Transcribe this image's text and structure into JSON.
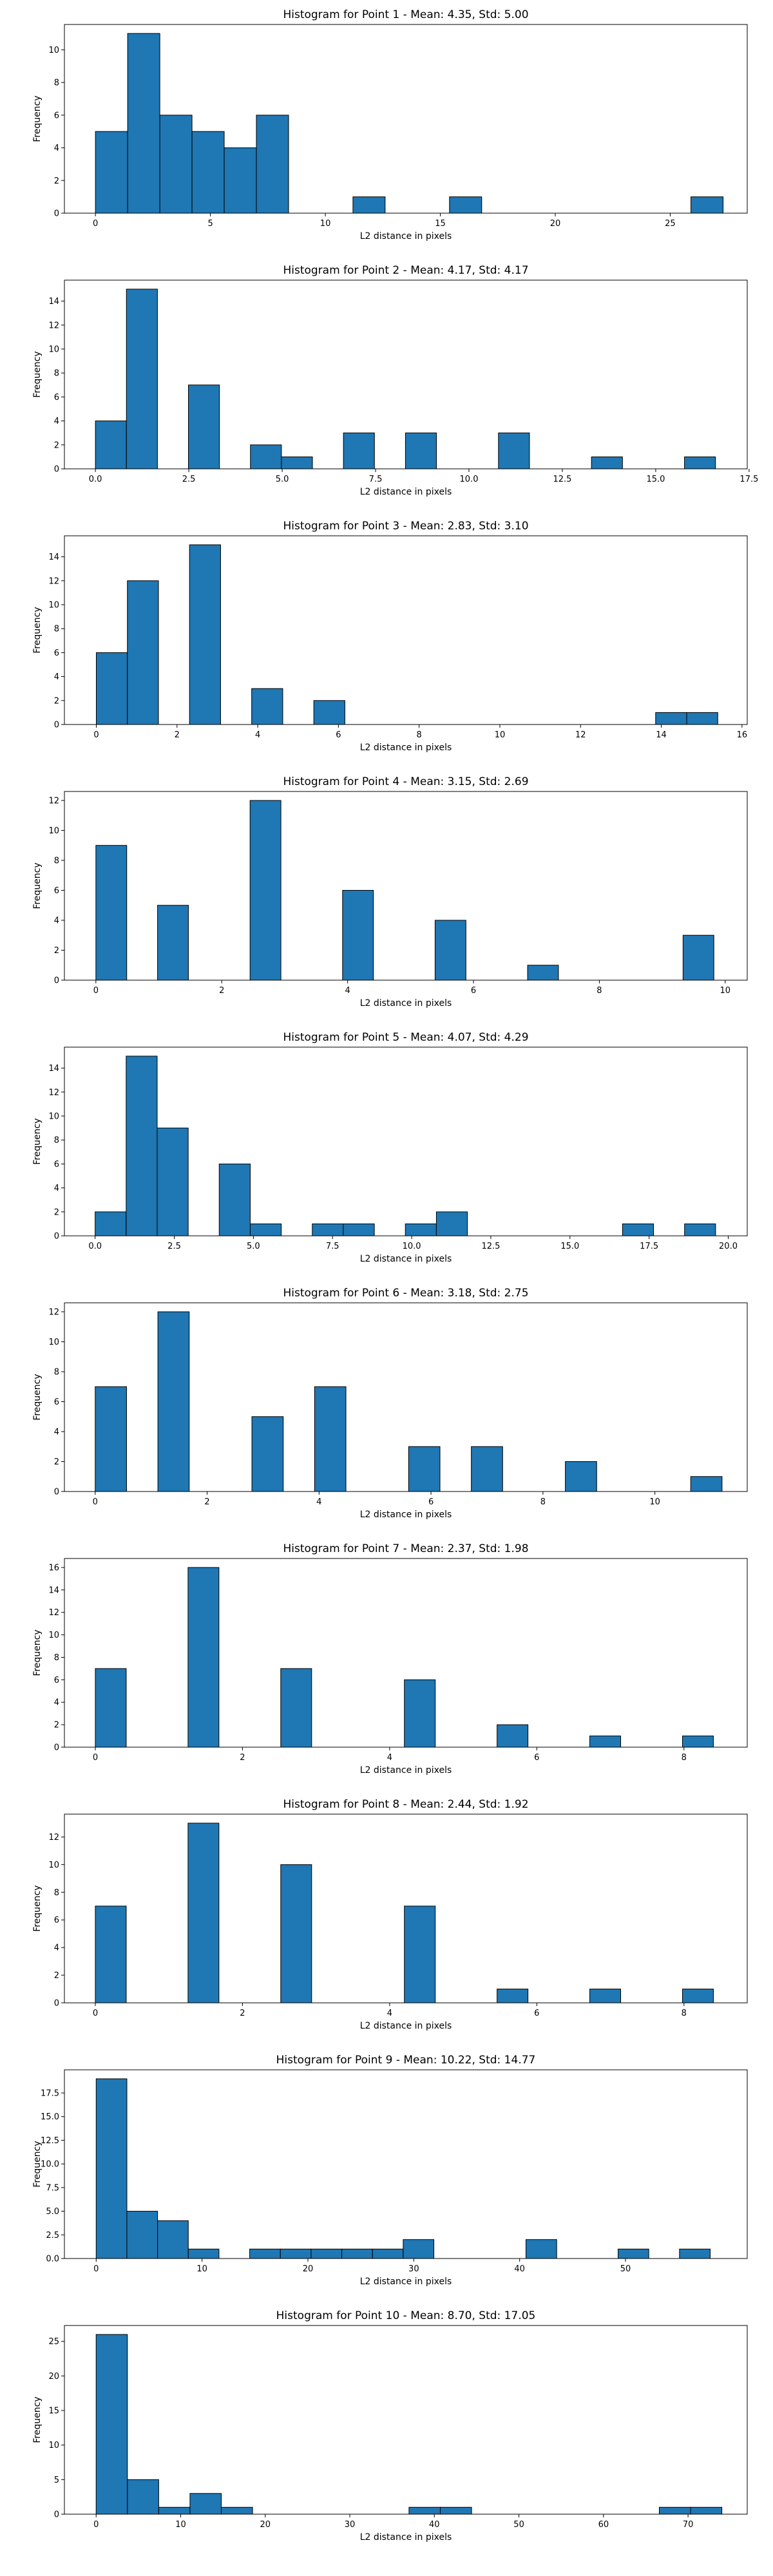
{
  "style": {
    "bar_color": "#1f77b4",
    "edge_color": "#000000"
  },
  "chart_data": [
    {
      "type": "bar",
      "title": "Histogram for Point 1 - Mean: 4.35, Std: 5.00",
      "xlabel": "L2 distance in pixels",
      "ylabel": "Frequency",
      "xlim": [
        -1.35,
        28.35
      ],
      "ylim": [
        0,
        11.55
      ],
      "xticks": [
        0,
        5,
        10,
        15,
        20,
        25
      ],
      "xtick_labels": [
        "0",
        "5",
        "10",
        "15",
        "20",
        "25"
      ],
      "yticks": [
        0,
        2,
        4,
        6,
        8,
        10
      ],
      "ytick_labels": [
        "0",
        "2",
        "4",
        "6",
        "8",
        "10"
      ],
      "bins": [
        {
          "x0": 0.0,
          "x1": 1.4,
          "count": 5
        },
        {
          "x0": 1.4,
          "x1": 2.8,
          "count": 11
        },
        {
          "x0": 2.8,
          "x1": 4.2,
          "count": 6
        },
        {
          "x0": 4.2,
          "x1": 5.6,
          "count": 5
        },
        {
          "x0": 5.6,
          "x1": 7.0,
          "count": 4
        },
        {
          "x0": 7.0,
          "x1": 8.4,
          "count": 6
        },
        {
          "x0": 11.2,
          "x1": 12.6,
          "count": 1
        },
        {
          "x0": 15.4,
          "x1": 16.8,
          "count": 1
        },
        {
          "x0": 25.9,
          "x1": 27.3,
          "count": 1
        }
      ]
    },
    {
      "type": "bar",
      "title": "Histogram for Point 2 - Mean: 4.17, Std: 4.17",
      "xlabel": "L2 distance in pixels",
      "ylabel": "Frequency",
      "xlim": [
        -0.83,
        17.45
      ],
      "ylim": [
        0,
        15.75
      ],
      "xticks": [
        0,
        2.5,
        5,
        7.5,
        10,
        12.5,
        15,
        17.5
      ],
      "xtick_labels": [
        "0.0",
        "2.5",
        "5.0",
        "7.5",
        "10.0",
        "12.5",
        "15.0",
        "17.5"
      ],
      "yticks": [
        0,
        2,
        4,
        6,
        8,
        10,
        12,
        14
      ],
      "ytick_labels": [
        "0",
        "2",
        "4",
        "6",
        "8",
        "10",
        "12",
        "14"
      ],
      "bins": [
        {
          "x0": 0.0,
          "x1": 0.83,
          "count": 4
        },
        {
          "x0": 0.83,
          "x1": 1.66,
          "count": 15
        },
        {
          "x0": 2.49,
          "x1": 3.32,
          "count": 7
        },
        {
          "x0": 4.15,
          "x1": 4.98,
          "count": 2
        },
        {
          "x0": 4.98,
          "x1": 5.81,
          "count": 1
        },
        {
          "x0": 6.64,
          "x1": 7.47,
          "count": 3
        },
        {
          "x0": 8.3,
          "x1": 9.13,
          "count": 3
        },
        {
          "x0": 10.79,
          "x1": 11.62,
          "count": 3
        },
        {
          "x0": 13.28,
          "x1": 14.11,
          "count": 1
        },
        {
          "x0": 15.77,
          "x1": 16.6,
          "count": 1
        }
      ]
    },
    {
      "type": "bar",
      "title": "Histogram for Point 3 - Mean: 2.83, Std: 3.10",
      "xlabel": "L2 distance in pixels",
      "ylabel": "Frequency",
      "xlim": [
        -0.79,
        16.13
      ],
      "ylim": [
        0,
        15.75
      ],
      "xticks": [
        0,
        2,
        4,
        6,
        8,
        10,
        12,
        14,
        16
      ],
      "xtick_labels": [
        "0",
        "2",
        "4",
        "6",
        "8",
        "10",
        "12",
        "14",
        "16"
      ],
      "yticks": [
        0,
        2,
        4,
        6,
        8,
        10,
        12,
        14
      ],
      "ytick_labels": [
        "0",
        "2",
        "4",
        "6",
        "8",
        "10",
        "12",
        "14"
      ],
      "bins": [
        {
          "x0": 0.0,
          "x1": 0.77,
          "count": 6
        },
        {
          "x0": 0.77,
          "x1": 1.54,
          "count": 12
        },
        {
          "x0": 2.31,
          "x1": 3.08,
          "count": 15
        },
        {
          "x0": 3.85,
          "x1": 4.62,
          "count": 3
        },
        {
          "x0": 5.39,
          "x1": 6.16,
          "count": 2
        },
        {
          "x0": 13.86,
          "x1": 14.63,
          "count": 1
        },
        {
          "x0": 14.63,
          "x1": 15.4,
          "count": 1
        }
      ]
    },
    {
      "type": "bar",
      "title": "Histogram for Point 4 - Mean: 3.15, Std: 2.69",
      "xlabel": "L2 distance in pixels",
      "ylabel": "Frequency",
      "xlim": [
        -0.5,
        10.35
      ],
      "ylim": [
        0,
        12.6
      ],
      "xticks": [
        0,
        2,
        4,
        6,
        8,
        10
      ],
      "xtick_labels": [
        "0",
        "2",
        "4",
        "6",
        "8",
        "10"
      ],
      "yticks": [
        0,
        2,
        4,
        6,
        8,
        10,
        12
      ],
      "ytick_labels": [
        "0",
        "2",
        "4",
        "6",
        "8",
        "10",
        "12"
      ],
      "bins": [
        {
          "x0": 0.0,
          "x1": 0.49,
          "count": 9
        },
        {
          "x0": 0.98,
          "x1": 1.47,
          "count": 5
        },
        {
          "x0": 2.45,
          "x1": 2.94,
          "count": 12
        },
        {
          "x0": 3.92,
          "x1": 4.41,
          "count": 6
        },
        {
          "x0": 5.39,
          "x1": 5.88,
          "count": 4
        },
        {
          "x0": 6.86,
          "x1": 7.35,
          "count": 1
        },
        {
          "x0": 9.33,
          "x1": 9.82,
          "count": 3
        }
      ]
    },
    {
      "type": "bar",
      "title": "Histogram for Point 5 - Mean: 4.07, Std: 4.29",
      "xlabel": "L2 distance in pixels",
      "ylabel": "Frequency",
      "xlim": [
        -0.97,
        20.6
      ],
      "ylim": [
        0,
        15.75
      ],
      "xticks": [
        0,
        2.5,
        5,
        7.5,
        10,
        12.5,
        15,
        17.5,
        20
      ],
      "xtick_labels": [
        "0.0",
        "2.5",
        "5.0",
        "7.5",
        "10.0",
        "12.5",
        "15.0",
        "17.5",
        "20.0"
      ],
      "yticks": [
        0,
        2,
        4,
        6,
        8,
        10,
        12,
        14
      ],
      "ytick_labels": [
        "0",
        "2",
        "4",
        "6",
        "8",
        "10",
        "12",
        "14"
      ],
      "bins": [
        {
          "x0": 0.0,
          "x1": 0.98,
          "count": 2
        },
        {
          "x0": 0.98,
          "x1": 1.96,
          "count": 15
        },
        {
          "x0": 1.96,
          "x1": 2.94,
          "count": 9
        },
        {
          "x0": 3.92,
          "x1": 4.9,
          "count": 6
        },
        {
          "x0": 4.9,
          "x1": 5.88,
          "count": 1
        },
        {
          "x0": 6.86,
          "x1": 7.84,
          "count": 1
        },
        {
          "x0": 7.84,
          "x1": 8.82,
          "count": 1
        },
        {
          "x0": 9.8,
          "x1": 10.78,
          "count": 1
        },
        {
          "x0": 10.78,
          "x1": 11.76,
          "count": 2
        },
        {
          "x0": 16.66,
          "x1": 17.64,
          "count": 1
        },
        {
          "x0": 18.62,
          "x1": 19.6,
          "count": 1
        }
      ]
    },
    {
      "type": "bar",
      "title": "Histogram for Point 6 - Mean: 3.18, Std: 2.75",
      "xlabel": "L2 distance in pixels",
      "ylabel": "Frequency",
      "xlim": [
        -0.55,
        11.65
      ],
      "ylim": [
        0,
        12.6
      ],
      "xticks": [
        0,
        2,
        4,
        6,
        8,
        10
      ],
      "xtick_labels": [
        "0",
        "2",
        "4",
        "6",
        "8",
        "10"
      ],
      "yticks": [
        0,
        2,
        4,
        6,
        8,
        10,
        12
      ],
      "ytick_labels": [
        "0",
        "2",
        "4",
        "6",
        "8",
        "10",
        "12"
      ],
      "bins": [
        {
          "x0": 0.0,
          "x1": 0.56,
          "count": 7
        },
        {
          "x0": 1.12,
          "x1": 1.68,
          "count": 12
        },
        {
          "x0": 2.8,
          "x1": 3.36,
          "count": 5
        },
        {
          "x0": 3.92,
          "x1": 4.48,
          "count": 7
        },
        {
          "x0": 5.6,
          "x1": 6.16,
          "count": 3
        },
        {
          "x0": 6.72,
          "x1": 7.28,
          "count": 3
        },
        {
          "x0": 8.4,
          "x1": 8.96,
          "count": 2
        },
        {
          "x0": 10.64,
          "x1": 11.2,
          "count": 1
        }
      ]
    },
    {
      "type": "bar",
      "title": "Histogram for Point 7 - Mean: 2.37, Std: 1.98",
      "xlabel": "L2 distance in pixels",
      "ylabel": "Frequency",
      "xlim": [
        -0.42,
        8.86
      ],
      "ylim": [
        0,
        16.8
      ],
      "xticks": [
        0,
        2,
        4,
        6,
        8
      ],
      "xtick_labels": [
        "0",
        "2",
        "4",
        "6",
        "8"
      ],
      "yticks": [
        0,
        2,
        4,
        6,
        8,
        10,
        12,
        14,
        16
      ],
      "ytick_labels": [
        "0",
        "2",
        "4",
        "6",
        "8",
        "10",
        "12",
        "14",
        "16"
      ],
      "bins": [
        {
          "x0": 0.0,
          "x1": 0.42,
          "count": 7
        },
        {
          "x0": 1.26,
          "x1": 1.68,
          "count": 16
        },
        {
          "x0": 2.52,
          "x1": 2.94,
          "count": 7
        },
        {
          "x0": 4.2,
          "x1": 4.62,
          "count": 6
        },
        {
          "x0": 5.46,
          "x1": 5.88,
          "count": 2
        },
        {
          "x0": 6.72,
          "x1": 7.14,
          "count": 1
        },
        {
          "x0": 7.98,
          "x1": 8.4,
          "count": 1
        }
      ]
    },
    {
      "type": "bar",
      "title": "Histogram for Point 8 - Mean: 2.44, Std: 1.92",
      "xlabel": "L2 distance in pixels",
      "ylabel": "Frequency",
      "xlim": [
        -0.42,
        8.86
      ],
      "ylim": [
        0,
        13.65
      ],
      "xticks": [
        0,
        2,
        4,
        6,
        8
      ],
      "xtick_labels": [
        "0",
        "2",
        "4",
        "6",
        "8"
      ],
      "yticks": [
        0,
        2,
        4,
        6,
        8,
        10,
        12
      ],
      "ytick_labels": [
        "0",
        "2",
        "4",
        "6",
        "8",
        "10",
        "12"
      ],
      "bins": [
        {
          "x0": 0.0,
          "x1": 0.42,
          "count": 7
        },
        {
          "x0": 1.26,
          "x1": 1.68,
          "count": 13
        },
        {
          "x0": 2.52,
          "x1": 2.94,
          "count": 10
        },
        {
          "x0": 4.2,
          "x1": 4.62,
          "count": 7
        },
        {
          "x0": 5.46,
          "x1": 5.88,
          "count": 1
        },
        {
          "x0": 6.72,
          "x1": 7.14,
          "count": 1
        },
        {
          "x0": 7.98,
          "x1": 8.4,
          "count": 1
        }
      ]
    },
    {
      "type": "bar",
      "title": "Histogram for Point 9 - Mean: 10.22, Std: 14.77",
      "xlabel": "L2 distance in pixels",
      "ylabel": "Frequency",
      "xlim": [
        -3.0,
        61.5
      ],
      "ylim": [
        0,
        19.95
      ],
      "xticks": [
        0,
        10,
        20,
        30,
        40,
        50
      ],
      "xtick_labels": [
        "0",
        "10",
        "20",
        "30",
        "40",
        "50"
      ],
      "yticks": [
        0,
        2.5,
        5,
        7.5,
        10,
        12.5,
        15,
        17.5
      ],
      "ytick_labels": [
        "0.0",
        "2.5",
        "5.0",
        "7.5",
        "10.0",
        "12.5",
        "15.0",
        "17.5"
      ],
      "bins": [
        {
          "x0": 0.0,
          "x1": 2.9,
          "count": 19
        },
        {
          "x0": 2.9,
          "x1": 5.8,
          "count": 5
        },
        {
          "x0": 5.8,
          "x1": 8.7,
          "count": 4
        },
        {
          "x0": 8.7,
          "x1": 11.6,
          "count": 1
        },
        {
          "x0": 14.5,
          "x1": 17.4,
          "count": 1
        },
        {
          "x0": 17.4,
          "x1": 20.3,
          "count": 1
        },
        {
          "x0": 20.3,
          "x1": 23.2,
          "count": 1
        },
        {
          "x0": 23.2,
          "x1": 26.1,
          "count": 1
        },
        {
          "x0": 26.1,
          "x1": 29.0,
          "count": 1
        },
        {
          "x0": 29.0,
          "x1": 31.9,
          "count": 2
        },
        {
          "x0": 40.6,
          "x1": 43.5,
          "count": 2
        },
        {
          "x0": 49.3,
          "x1": 52.2,
          "count": 1
        },
        {
          "x0": 55.1,
          "x1": 58.0,
          "count": 1
        }
      ]
    },
    {
      "type": "bar",
      "title": "Histogram for Point 10 - Mean: 8.70, Std: 17.05",
      "xlabel": "L2 distance in pixels",
      "ylabel": "Frequency",
      "xlim": [
        -3.75,
        77.0
      ],
      "ylim": [
        0,
        27.3
      ],
      "xticks": [
        0,
        10,
        20,
        30,
        40,
        50,
        60,
        70
      ],
      "xtick_labels": [
        "0",
        "10",
        "20",
        "30",
        "40",
        "50",
        "60",
        "70"
      ],
      "yticks": [
        0,
        5,
        10,
        15,
        20,
        25
      ],
      "ytick_labels": [
        "0",
        "5",
        "10",
        "15",
        "20",
        "25"
      ],
      "bins": [
        {
          "x0": 0.0,
          "x1": 3.7,
          "count": 26
        },
        {
          "x0": 3.7,
          "x1": 7.4,
          "count": 5
        },
        {
          "x0": 7.4,
          "x1": 11.1,
          "count": 1
        },
        {
          "x0": 11.1,
          "x1": 14.8,
          "count": 3
        },
        {
          "x0": 14.8,
          "x1": 18.5,
          "count": 1
        },
        {
          "x0": 37.0,
          "x1": 40.7,
          "count": 1
        },
        {
          "x0": 40.7,
          "x1": 44.4,
          "count": 1
        },
        {
          "x0": 66.6,
          "x1": 70.3,
          "count": 1
        },
        {
          "x0": 70.3,
          "x1": 74.0,
          "count": 1
        }
      ]
    }
  ]
}
